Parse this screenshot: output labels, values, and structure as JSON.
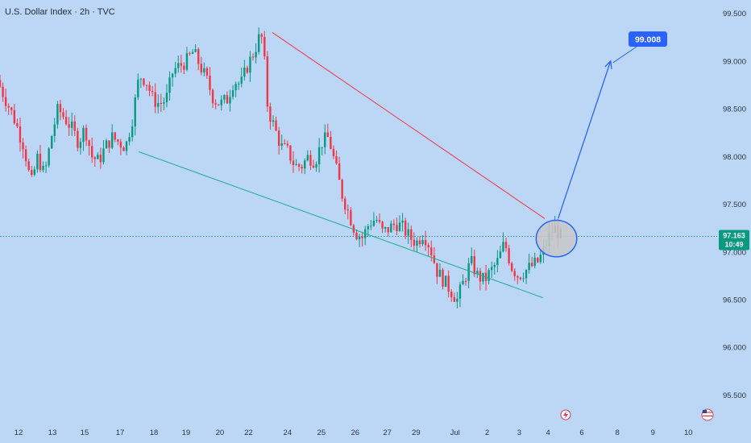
{
  "header": {
    "title": "U.S. Dollar Index · 2h · TVC"
  },
  "chart_data": {
    "type": "candlestick",
    "symbol": "U.S. Dollar Index",
    "interval": "2h",
    "source": "TVC",
    "y_ticks": [
      "99.500",
      "99.000",
      "98.500",
      "98.000",
      "97.500",
      "97.000",
      "96.500",
      "96.000",
      "95.500"
    ],
    "ylim": [
      95.2,
      99.64
    ],
    "x_ticks": [
      {
        "label": "12",
        "t": 0.55
      },
      {
        "label": "13",
        "t": 1.55
      },
      {
        "label": "15",
        "t": 2.5
      },
      {
        "label": "17",
        "t": 3.55
      },
      {
        "label": "18",
        "t": 4.55
      },
      {
        "label": "19",
        "t": 5.5
      },
      {
        "label": "20",
        "t": 6.5
      },
      {
        "label": "22",
        "t": 7.35
      },
      {
        "label": "24",
        "t": 8.5
      },
      {
        "label": "25",
        "t": 9.5
      },
      {
        "label": "26",
        "t": 10.5
      },
      {
        "label": "27",
        "t": 11.45
      },
      {
        "label": "29",
        "t": 12.3
      },
      {
        "label": "Jul",
        "t": 13.45
      },
      {
        "label": "2",
        "t": 14.4
      },
      {
        "label": "3",
        "t": 15.35
      },
      {
        "label": "4",
        "t": 16.2
      },
      {
        "label": "6",
        "t": 17.2
      },
      {
        "label": "8",
        "t": 18.25
      },
      {
        "label": "9",
        "t": 19.3
      },
      {
        "label": "10",
        "t": 20.35
      }
    ],
    "xlim": [
      0,
      21.2
    ],
    "current_price": {
      "value": 97.163,
      "label": "97.163",
      "countdown": "10:49"
    },
    "target_callout": {
      "value": "99.008",
      "price": 99.008
    },
    "colors": {
      "up": "#089981",
      "down": "#f23645",
      "support": "#22ab94",
      "resistance": "#f23645",
      "projection": "#2962ff"
    },
    "candle_path": [
      [
        0.0,
        98.8
      ],
      [
        0.25,
        98.6
      ],
      [
        0.5,
        98.4
      ],
      [
        0.8,
        98.1
      ],
      [
        1.0,
        97.7
      ],
      [
        1.2,
        98.0
      ],
      [
        1.4,
        97.8
      ],
      [
        1.6,
        98.2
      ],
      [
        1.8,
        98.5
      ],
      [
        2.0,
        98.4
      ],
      [
        2.2,
        98.3
      ],
      [
        2.4,
        98.15
      ],
      [
        2.6,
        98.3
      ],
      [
        2.8,
        98.0
      ],
      [
        3.0,
        97.95
      ],
      [
        3.2,
        98.1
      ],
      [
        3.4,
        98.2
      ],
      [
        3.6,
        98.15
      ],
      [
        3.8,
        98.1
      ],
      [
        4.0,
        98.4
      ],
      [
        4.2,
        98.85
      ],
      [
        4.4,
        98.8
      ],
      [
        4.6,
        98.6
      ],
      [
        4.8,
        98.55
      ],
      [
        5.0,
        98.6
      ],
      [
        5.2,
        98.9
      ],
      [
        5.4,
        98.95
      ],
      [
        5.6,
        99.0
      ],
      [
        5.8,
        99.1
      ],
      [
        6.0,
        98.95
      ],
      [
        6.2,
        98.8
      ],
      [
        6.4,
        98.6
      ],
      [
        6.6,
        98.55
      ],
      [
        6.8,
        98.6
      ],
      [
        7.0,
        98.8
      ],
      [
        7.2,
        98.75
      ],
      [
        7.4,
        98.95
      ],
      [
        7.6,
        99.1
      ],
      [
        7.8,
        99.3
      ],
      [
        7.9,
        99.0
      ],
      [
        8.0,
        98.5
      ],
      [
        8.2,
        98.3
      ],
      [
        8.4,
        98.1
      ],
      [
        8.6,
        98.05
      ],
      [
        8.8,
        97.9
      ],
      [
        9.0,
        97.9
      ],
      [
        9.2,
        98.0
      ],
      [
        9.4,
        97.95
      ],
      [
        9.6,
        98.15
      ],
      [
        9.8,
        98.2
      ],
      [
        10.0,
        97.9
      ],
      [
        10.2,
        97.6
      ],
      [
        10.4,
        97.4
      ],
      [
        10.6,
        97.2
      ],
      [
        10.8,
        97.15
      ],
      [
        11.0,
        97.3
      ],
      [
        11.2,
        97.35
      ],
      [
        11.4,
        97.2
      ],
      [
        11.6,
        97.25
      ],
      [
        11.8,
        97.3
      ],
      [
        12.0,
        97.25
      ],
      [
        12.2,
        97.15
      ],
      [
        12.4,
        97.1
      ],
      [
        12.6,
        97.2
      ],
      [
        12.8,
        97.05
      ],
      [
        13.0,
        96.8
      ],
      [
        13.2,
        96.7
      ],
      [
        13.4,
        96.6
      ],
      [
        13.6,
        96.5
      ],
      [
        13.8,
        96.7
      ],
      [
        14.0,
        96.9
      ],
      [
        14.2,
        96.75
      ],
      [
        14.4,
        96.7
      ],
      [
        14.6,
        96.8
      ],
      [
        14.8,
        96.9
      ],
      [
        15.0,
        97.1
      ],
      [
        15.2,
        96.85
      ],
      [
        15.4,
        96.75
      ],
      [
        15.6,
        96.8
      ],
      [
        15.8,
        96.85
      ],
      [
        16.0,
        96.9
      ],
      [
        16.2,
        97.05
      ],
      [
        16.35,
        97.2
      ],
      [
        16.5,
        97.25
      ],
      [
        16.65,
        97.163
      ]
    ],
    "trendlines": [
      {
        "role": "support",
        "from": [
          4.1,
          98.05
        ],
        "to": [
          16.05,
          96.52
        ]
      },
      {
        "role": "resistance",
        "from": [
          8.05,
          99.3
        ],
        "to": [
          16.1,
          97.35
        ]
      }
    ],
    "projection_arrow": {
      "from": [
        16.5,
        97.35
      ],
      "to": [
        18.05,
        99.0
      ]
    },
    "highlight_circle": {
      "center": [
        16.45,
        97.14
      ],
      "radius_ticks": 0.6
    }
  }
}
